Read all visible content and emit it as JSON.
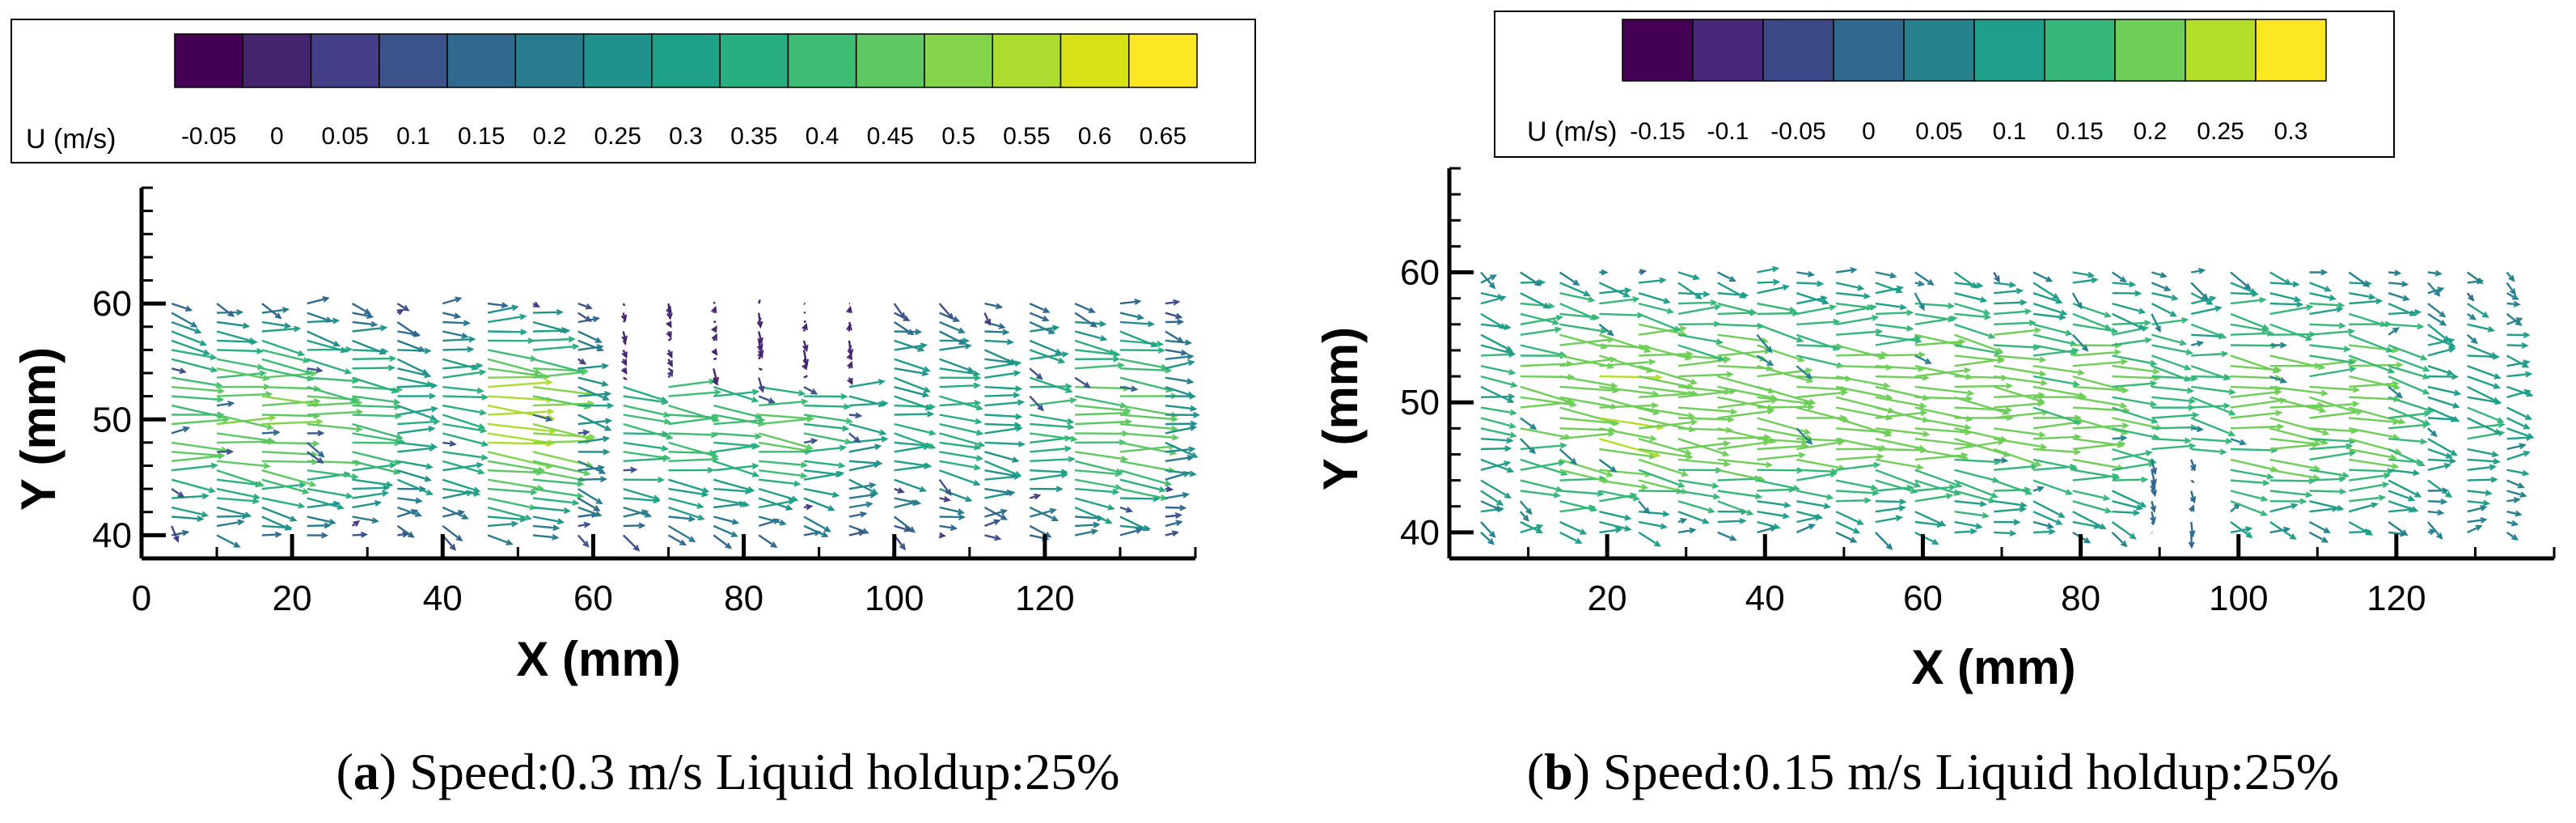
{
  "chart_data": [
    {
      "type": "vector-field",
      "panel_label": "a",
      "caption": "Speed:0.3 m/s Liquid holdup:25%",
      "xlabel": "X (mm)",
      "ylabel": "Y (mm)",
      "xlim": [
        0,
        140
      ],
      "ylim": [
        38,
        70
      ],
      "xticks": [
        0,
        20,
        40,
        60,
        80,
        100,
        120
      ],
      "yticks": [
        40,
        50,
        60
      ],
      "colorbar": {
        "variable": "U (m/s)",
        "levels": [
          "-0.05",
          "0",
          "0.05",
          "0.1",
          "0.15",
          "0.2",
          "0.25",
          "0.3",
          "0.35",
          "0.4",
          "0.45",
          "0.5",
          "0.55",
          "0.6",
          "0.65"
        ],
        "colors": [
          "#440154",
          "#46256f",
          "#433e85",
          "#3b528b",
          "#31688e",
          "#297b8e",
          "#21918c",
          "#1fa187",
          "#29af7f",
          "#3fbc73",
          "#5ec962",
          "#84d44b",
          "#addc30",
          "#d8e219",
          "#fde725"
        ],
        "min": -0.05,
        "max": 0.65
      },
      "velocity_field": {
        "x_stations_mm": [
          4,
          10,
          16,
          22,
          28,
          34,
          40,
          46,
          52,
          58,
          64,
          70,
          76,
          82,
          88,
          94,
          100,
          106,
          112,
          118,
          124,
          130,
          136
        ],
        "y_range_mm": [
          40,
          60
        ],
        "station_peak_u": [
          0.42,
          0.44,
          0.45,
          0.43,
          0.38,
          0.3,
          0.34,
          0.5,
          0.48,
          0.25,
          0.36,
          0.4,
          0.38,
          0.4,
          0.35,
          0.28,
          0.3,
          0.33,
          0.3,
          0.35,
          0.42,
          0.45,
          0.25
        ],
        "predominant_direction": "+X",
        "sparse_region": "X 60–95 mm, Y 53–60 mm"
      }
    },
    {
      "type": "vector-field",
      "panel_label": "b",
      "caption": "Speed:0.15 m/s Liquid holdup:25%",
      "xlabel": "X (mm)",
      "ylabel": "Y (mm)",
      "xlim": [
        0,
        140
      ],
      "ylim": [
        38,
        68
      ],
      "xticks": [
        20,
        40,
        60,
        80,
        100,
        120
      ],
      "yticks": [
        40,
        50,
        60
      ],
      "colorbar": {
        "variable": "U (m/s)",
        "levels": [
          "-0.15",
          "-0.1",
          "-0.05",
          "0",
          "0.05",
          "0.1",
          "0.15",
          "0.2",
          "0.25",
          "0.3"
        ],
        "colors": [
          "#440154",
          "#482878",
          "#3e4989",
          "#31688e",
          "#26828e",
          "#1f9e89",
          "#35b779",
          "#6ece58",
          "#b5de2b",
          "#fde725"
        ],
        "min": -0.15,
        "max": 0.3
      },
      "velocity_field": {
        "x_stations_mm": [
          4,
          9,
          14,
          19,
          24,
          29,
          34,
          39,
          44,
          49,
          54,
          59,
          64,
          69,
          74,
          79,
          84,
          89,
          94,
          99,
          104,
          109,
          114,
          119,
          124,
          129,
          134
        ],
        "y_range_mm": [
          40,
          60
        ],
        "station_peak_u": [
          0.12,
          0.18,
          0.2,
          0.21,
          0.2,
          0.19,
          0.2,
          0.19,
          0.18,
          0.19,
          0.18,
          0.2,
          0.19,
          0.18,
          0.17,
          0.19,
          0.16,
          0.15,
          0.14,
          0.18,
          0.19,
          0.17,
          0.18,
          0.14,
          0.1,
          0.12,
          0.08
        ],
        "predominant_direction": "+X",
        "sparse_region": "X 85–95 mm, Y 40–46 mm"
      }
    }
  ]
}
